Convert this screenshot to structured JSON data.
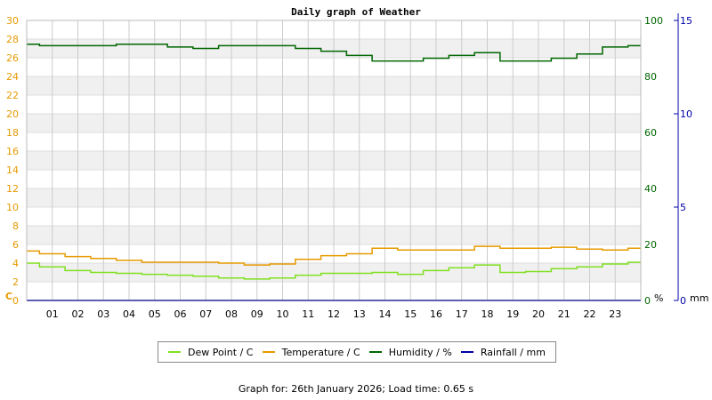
{
  "chart_data": {
    "type": "line",
    "title": "Daily graph of Weather",
    "x_categories": [
      "01",
      "02",
      "03",
      "04",
      "05",
      "06",
      "07",
      "08",
      "09",
      "10",
      "11",
      "12",
      "13",
      "14",
      "15",
      "16",
      "17",
      "18",
      "19",
      "20",
      "21",
      "22",
      "23"
    ],
    "x_range_hours": [
      0,
      24
    ],
    "y_left": {
      "label": "C",
      "ticks": [
        "0",
        "2",
        "4",
        "6",
        "8",
        "10",
        "12",
        "14",
        "16",
        "18",
        "20",
        "22",
        "24",
        "26",
        "28",
        "30"
      ],
      "range": [
        0,
        30
      ],
      "color": "#e69a00"
    },
    "y_right_humidity": {
      "label": "%",
      "ticks": [
        "0",
        "20",
        "40",
        "60",
        "80",
        "100"
      ],
      "range": [
        0,
        100
      ],
      "color": "#006600"
    },
    "y_right_rain": {
      "label": "mm",
      "ticks": [
        "0",
        "5",
        "10",
        "15"
      ],
      "range": [
        0,
        15
      ],
      "color": "#0000aa"
    },
    "grid": true,
    "series": [
      {
        "name": "Dew Point / C",
        "color": "#80e020",
        "axis": "left",
        "x": [
          0,
          1,
          2,
          3,
          4,
          5,
          6,
          7,
          8,
          9,
          10,
          11,
          12,
          13,
          14,
          15,
          16,
          17,
          18,
          19,
          20,
          21,
          22,
          23,
          24
        ],
        "y": [
          4.0,
          3.6,
          3.2,
          3.0,
          2.9,
          2.8,
          2.7,
          2.6,
          2.4,
          2.3,
          2.4,
          2.7,
          2.9,
          2.9,
          3.0,
          2.8,
          3.2,
          3.5,
          3.8,
          3.0,
          3.1,
          3.4,
          3.6,
          3.9,
          4.1
        ]
      },
      {
        "name": "Temperature / C",
        "color": "#e69a00",
        "axis": "left",
        "x": [
          0,
          1,
          2,
          3,
          4,
          5,
          6,
          7,
          8,
          9,
          10,
          11,
          12,
          13,
          14,
          15,
          16,
          17,
          18,
          19,
          20,
          21,
          22,
          23,
          24
        ],
        "y": [
          5.3,
          5.0,
          4.7,
          4.5,
          4.3,
          4.1,
          4.1,
          4.1,
          4.0,
          3.8,
          3.9,
          4.4,
          4.8,
          5.0,
          5.6,
          5.4,
          5.4,
          5.4,
          5.8,
          5.6,
          5.6,
          5.7,
          5.5,
          5.4,
          5.6
        ]
      },
      {
        "name": "Humidity / %",
        "color": "#006600",
        "axis": "humidity",
        "x": [
          0,
          1,
          2,
          3,
          4,
          5,
          6,
          7,
          8,
          9,
          10,
          11,
          12,
          13,
          14,
          15,
          16,
          17,
          18,
          19,
          20,
          21,
          22,
          23,
          24
        ],
        "y": [
          91.5,
          91.0,
          91.0,
          91.0,
          91.5,
          91.5,
          90.5,
          90.0,
          91.0,
          91.0,
          91.0,
          90.0,
          89.0,
          87.5,
          85.5,
          85.5,
          86.5,
          87.5,
          88.5,
          85.5,
          85.5,
          86.5,
          88.0,
          90.5,
          91.0
        ]
      },
      {
        "name": "Rainfall / mm",
        "color": "#0000aa",
        "axis": "rain",
        "x": [
          0,
          24
        ],
        "y": [
          0,
          0
        ]
      }
    ],
    "legend_position": "bottom"
  },
  "legend": [
    {
      "label": "Dew Point / C",
      "color": "#80e020"
    },
    {
      "label": "Temperature / C",
      "color": "#e69a00"
    },
    {
      "label": "Humidity / %",
      "color": "#006600"
    },
    {
      "label": "Rainfall / mm",
      "color": "#0000aa"
    }
  ],
  "footer": "Graph for: 26th January 2026; Load time: 0.65 s"
}
